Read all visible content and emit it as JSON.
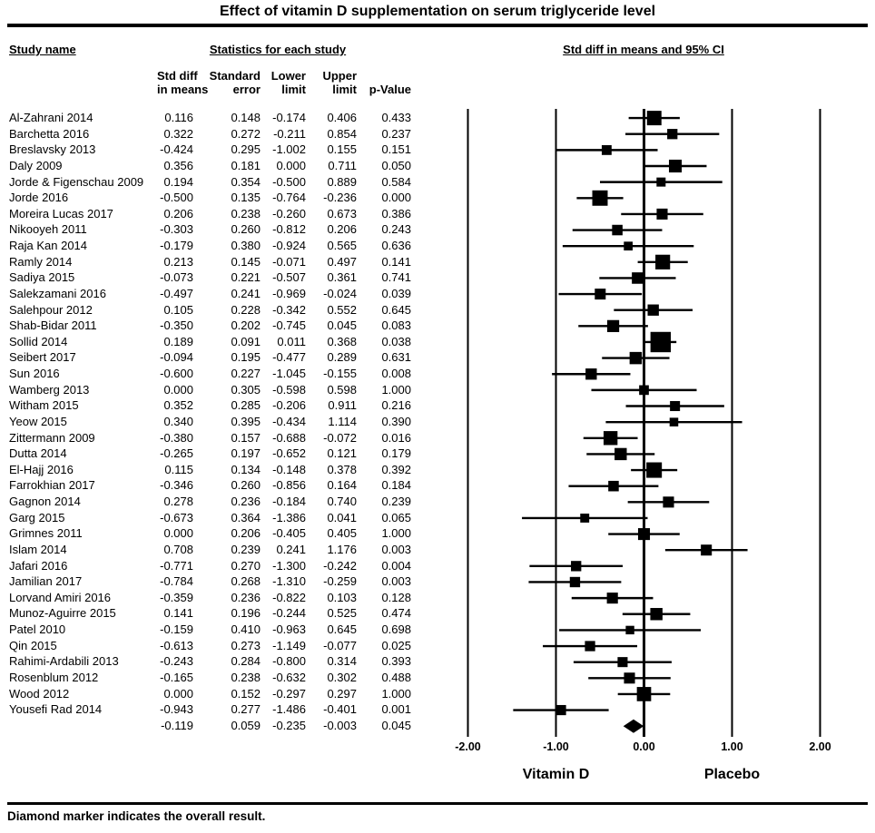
{
  "title": "Effect of vitamin D supplementation on serum triglyceride level",
  "footer": "Diamond marker indicates the overall result.",
  "header": {
    "study_col": "Study name",
    "stats_col": "Statistics for each study",
    "plot_col": "Std diff in means and 95% CI",
    "sub_columns": [
      {
        "line1": "Std diff",
        "line2": "in means"
      },
      {
        "line1": "Standard",
        "line2": "error"
      },
      {
        "line1": "Lower",
        "line2": "limit"
      },
      {
        "line1": "Upper",
        "line2": "limit"
      },
      {
        "line1": "",
        "line2": "p-Value"
      }
    ]
  },
  "chart_data": {
    "type": "forest",
    "title": "Effect of vitamin D supplementation on serum triglyceride level",
    "xlabel_ticks": [
      "-2.00",
      "-1.00",
      "0.00",
      "1.00",
      "2.00"
    ],
    "x_tick_values": [
      -2,
      -1,
      0,
      1,
      2
    ],
    "xlim": [
      -2.35,
      2.6
    ],
    "group_labels": {
      "left": "Vitamin D",
      "right": "Placebo"
    },
    "value_columns": [
      "std_diff_in_means",
      "standard_error",
      "lower_limit",
      "upper_limit",
      "p_value"
    ],
    "marker_color": "#000000",
    "studies": [
      {
        "name": "Al-Zahrani 2014",
        "std_diff": 0.116,
        "std_err": 0.148,
        "lower": -0.174,
        "upper": 0.406,
        "p": 0.433
      },
      {
        "name": "Barchetta 2016",
        "std_diff": 0.322,
        "std_err": 0.272,
        "lower": -0.211,
        "upper": 0.854,
        "p": 0.237
      },
      {
        "name": "Breslavsky 2013",
        "std_diff": -0.424,
        "std_err": 0.295,
        "lower": -1.002,
        "upper": 0.155,
        "p": 0.151
      },
      {
        "name": "Daly 2009",
        "std_diff": 0.356,
        "std_err": 0.181,
        "lower": 0.0,
        "upper": 0.711,
        "p": 0.05
      },
      {
        "name": "Jorde & Figenschau 2009",
        "std_diff": 0.194,
        "std_err": 0.354,
        "lower": -0.5,
        "upper": 0.889,
        "p": 0.584
      },
      {
        "name": "Jorde 2016",
        "std_diff": -0.5,
        "std_err": 0.135,
        "lower": -0.764,
        "upper": -0.236,
        "p": 0.0
      },
      {
        "name": "Moreira Lucas 2017",
        "std_diff": 0.206,
        "std_err": 0.238,
        "lower": -0.26,
        "upper": 0.673,
        "p": 0.386
      },
      {
        "name": "Nikooyeh 2011",
        "std_diff": -0.303,
        "std_err": 0.26,
        "lower": -0.812,
        "upper": 0.206,
        "p": 0.243
      },
      {
        "name": "Raja Kan 2014",
        "std_diff": -0.179,
        "std_err": 0.38,
        "lower": -0.924,
        "upper": 0.565,
        "p": 0.636
      },
      {
        "name": "Ramly 2014",
        "std_diff": 0.213,
        "std_err": 0.145,
        "lower": -0.071,
        "upper": 0.497,
        "p": 0.141
      },
      {
        "name": "Sadiya 2015",
        "std_diff": -0.073,
        "std_err": 0.221,
        "lower": -0.507,
        "upper": 0.361,
        "p": 0.741
      },
      {
        "name": "Salekzamani 2016",
        "std_diff": -0.497,
        "std_err": 0.241,
        "lower": -0.969,
        "upper": -0.024,
        "p": 0.039
      },
      {
        "name": "Salehpour 2012",
        "std_diff": 0.105,
        "std_err": 0.228,
        "lower": -0.342,
        "upper": 0.552,
        "p": 0.645
      },
      {
        "name": "Shab-Bidar 2011",
        "std_diff": -0.35,
        "std_err": 0.202,
        "lower": -0.745,
        "upper": 0.045,
        "p": 0.083
      },
      {
        "name": "Sollid 2014",
        "std_diff": 0.189,
        "std_err": 0.091,
        "lower": 0.011,
        "upper": 0.368,
        "p": 0.038
      },
      {
        "name": "Seibert 2017",
        "std_diff": -0.094,
        "std_err": 0.195,
        "lower": -0.477,
        "upper": 0.289,
        "p": 0.631
      },
      {
        "name": "Sun 2016",
        "std_diff": -0.6,
        "std_err": 0.227,
        "lower": -1.045,
        "upper": -0.155,
        "p": 0.008
      },
      {
        "name": "Wamberg 2013",
        "std_diff": 0.0,
        "std_err": 0.305,
        "lower": -0.598,
        "upper": 0.598,
        "p": 1.0
      },
      {
        "name": "Witham 2015",
        "std_diff": 0.352,
        "std_err": 0.285,
        "lower": -0.206,
        "upper": 0.911,
        "p": 0.216
      },
      {
        "name": "Yeow 2015",
        "std_diff": 0.34,
        "std_err": 0.395,
        "lower": -0.434,
        "upper": 1.114,
        "p": 0.39
      },
      {
        "name": "Zittermann 2009",
        "std_diff": -0.38,
        "std_err": 0.157,
        "lower": -0.688,
        "upper": -0.072,
        "p": 0.016
      },
      {
        "name": "Dutta 2014",
        "std_diff": -0.265,
        "std_err": 0.197,
        "lower": -0.652,
        "upper": 0.121,
        "p": 0.179
      },
      {
        "name": "El-Hajj 2016",
        "std_diff": 0.115,
        "std_err": 0.134,
        "lower": -0.148,
        "upper": 0.378,
        "p": 0.392
      },
      {
        "name": "Farrokhian 2017",
        "std_diff": -0.346,
        "std_err": 0.26,
        "lower": -0.856,
        "upper": 0.164,
        "p": 0.184
      },
      {
        "name": "Gagnon 2014",
        "std_diff": 0.278,
        "std_err": 0.236,
        "lower": -0.184,
        "upper": 0.74,
        "p": 0.239
      },
      {
        "name": "Garg 2015",
        "std_diff": -0.673,
        "std_err": 0.364,
        "lower": -1.386,
        "upper": 0.041,
        "p": 0.065
      },
      {
        "name": "Grimnes 2011",
        "std_diff": 0.0,
        "std_err": 0.206,
        "lower": -0.405,
        "upper": 0.405,
        "p": 1.0
      },
      {
        "name": "Islam 2014",
        "std_diff": 0.708,
        "std_err": 0.239,
        "lower": 0.241,
        "upper": 1.176,
        "p": 0.003
      },
      {
        "name": "Jafari 2016",
        "std_diff": -0.771,
        "std_err": 0.27,
        "lower": -1.3,
        "upper": -0.242,
        "p": 0.004
      },
      {
        "name": "Jamilian 2017",
        "std_diff": -0.784,
        "std_err": 0.268,
        "lower": -1.31,
        "upper": -0.259,
        "p": 0.003
      },
      {
        "name": "Lorvand Amiri 2016",
        "std_diff": -0.359,
        "std_err": 0.236,
        "lower": -0.822,
        "upper": 0.103,
        "p": 0.128
      },
      {
        "name": "Munoz-Aguirre 2015",
        "std_diff": 0.141,
        "std_err": 0.196,
        "lower": -0.244,
        "upper": 0.525,
        "p": 0.474
      },
      {
        "name": "Patel 2010",
        "std_diff": -0.159,
        "std_err": 0.41,
        "lower": -0.963,
        "upper": 0.645,
        "p": 0.698
      },
      {
        "name": "Qin 2015",
        "std_diff": -0.613,
        "std_err": 0.273,
        "lower": -1.149,
        "upper": -0.077,
        "p": 0.025
      },
      {
        "name": "Rahimi-Ardabili 2013",
        "std_diff": -0.243,
        "std_err": 0.284,
        "lower": -0.8,
        "upper": 0.314,
        "p": 0.393
      },
      {
        "name": "Rosenblum 2012",
        "std_diff": -0.165,
        "std_err": 0.238,
        "lower": -0.632,
        "upper": 0.302,
        "p": 0.488
      },
      {
        "name": "Wood 2012",
        "std_diff": 0.0,
        "std_err": 0.152,
        "lower": -0.297,
        "upper": 0.297,
        "p": 1.0
      },
      {
        "name": "Yousefi Rad 2014",
        "std_diff": -0.943,
        "std_err": 0.277,
        "lower": -1.486,
        "upper": -0.401,
        "p": 0.001
      }
    ],
    "overall": {
      "name": "",
      "std_diff": -0.119,
      "std_err": 0.059,
      "lower": -0.235,
      "upper": -0.003,
      "p": 0.045
    }
  }
}
